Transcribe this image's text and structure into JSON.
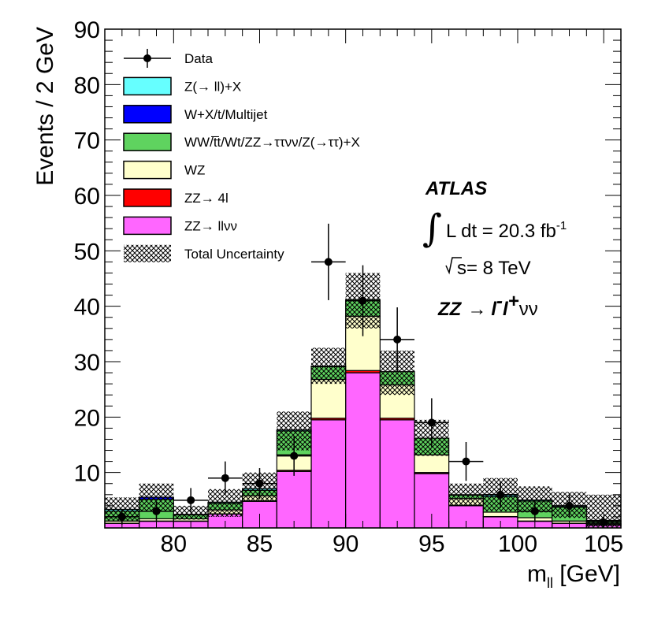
{
  "chart_data": {
    "type": "bar",
    "title": "",
    "xlabel": "m",
    "xlabel_sub": "ll",
    "xlabel_unit": " [GeV]",
    "ylabel": "Events / 2 GeV",
    "xlim": [
      76,
      106
    ],
    "ylim": [
      0,
      90
    ],
    "x_ticks": [
      80,
      85,
      90,
      95,
      100,
      105
    ],
    "x_tick_labels": [
      "80",
      "85",
      "90",
      "95",
      "100",
      "105"
    ],
    "y_ticks": [
      10,
      20,
      30,
      40,
      50,
      60,
      70,
      80,
      90
    ],
    "y_tick_labels": [
      "10",
      "20",
      "30",
      "40",
      "50",
      "60",
      "70",
      "80",
      "90"
    ],
    "bin_edges": [
      76,
      78,
      80,
      82,
      84,
      86,
      88,
      90,
      92,
      94,
      96,
      98,
      100,
      102,
      104,
      106
    ],
    "stack_order": "bottom-to-top",
    "series": [
      {
        "name": "ZZ→ llνν",
        "label": "ZZ→ llνν",
        "color": "#ff66ff",
        "values": [
          0.8,
          1.2,
          1.2,
          2.5,
          4.8,
          10.2,
          19.5,
          28.0,
          19.5,
          9.8,
          4.0,
          2.0,
          1.2,
          0.8,
          0.5
        ]
      },
      {
        "name": "ZZ→ 4l",
        "label": "ZZ→ 4l",
        "color": "#ff0000",
        "values": [
          0.05,
          0.05,
          0.05,
          0.05,
          0.1,
          0.2,
          0.3,
          0.4,
          0.3,
          0.2,
          0.1,
          0.05,
          0.05,
          0.05,
          0.05
        ]
      },
      {
        "name": "WZ",
        "label": "WZ",
        "color": "#ffffcc",
        "values": [
          0.4,
          0.4,
          0.4,
          0.7,
          0.9,
          2.8,
          7.0,
          9.8,
          6.0,
          3.2,
          1.2,
          0.8,
          0.6,
          0.4,
          0.2
        ]
      },
      {
        "name": "WW/tt/Wt/ZZ→ττνν/Z(→ττ)+X",
        "label": "WW/t̅t/Wt/ZZ→ττνν/Z(→ττ)+X",
        "color": "#5fd35f",
        "values": [
          1.8,
          3.5,
          0.7,
          1.2,
          1.0,
          4.3,
          2.3,
          3.0,
          2.4,
          3.0,
          0.6,
          2.8,
          3.0,
          2.5,
          0.5
        ]
      },
      {
        "name": "W+X/t/Multijet",
        "label": "W+X/t/Multijet",
        "color": "#0000ff",
        "values": [
          0.0,
          0.4,
          0.0,
          0.0,
          0.0,
          0.0,
          0.0,
          0.0,
          0.0,
          0.0,
          0.0,
          0.0,
          0.0,
          0.0,
          0.0
        ]
      },
      {
        "name": "Z(→ ll)+X",
        "label": "Z(→ ll)+X",
        "color": "#66ffff",
        "values": [
          0.3,
          0.0,
          0.1,
          0.2,
          0.3,
          0.2,
          0.1,
          0.0,
          0.0,
          0.0,
          0.1,
          0.3,
          0.2,
          0.2,
          0.1
        ]
      }
    ],
    "uncertainty": {
      "label": "Total Uncertainty",
      "low": [
        1.3,
        3.0,
        1.5,
        2.0,
        5.0,
        14.0,
        26.0,
        36.0,
        24.0,
        13.0,
        4.0,
        3.0,
        2.8,
        1.8,
        0.0
      ],
      "high": [
        5.5,
        8.0,
        4.0,
        7.0,
        10.0,
        21.0,
        32.5,
        46.0,
        32.0,
        19.5,
        8.0,
        9.0,
        7.5,
        6.5,
        6.0
      ]
    },
    "data_points": {
      "label": "Data",
      "x": [
        77,
        79,
        81,
        83,
        85,
        87,
        89,
        91,
        93,
        95,
        97,
        99,
        101,
        103,
        105
      ],
      "y": [
        2,
        3,
        5,
        9,
        8,
        13,
        48,
        41,
        34,
        19,
        12,
        6,
        3,
        4,
        1
      ],
      "err": [
        1.4,
        1.7,
        2.2,
        3.0,
        2.8,
        3.6,
        6.9,
        6.4,
        5.8,
        4.4,
        3.5,
        2.4,
        1.7,
        2.0,
        1.0
      ]
    },
    "legend_placement": "top-left",
    "annotations": {
      "experiment": "ATLAS",
      "lumi_label": "L dt = 20.3 fb",
      "lumi_sup": "-1",
      "energy_label": "s= 8 TeV",
      "process_label": "ZZ",
      "process_arrow": "→",
      "process_l1": "l",
      "process_l1_sup": "-",
      "process_l2": "l",
      "process_l2_sup": "+",
      "process_nu": "νν"
    }
  }
}
